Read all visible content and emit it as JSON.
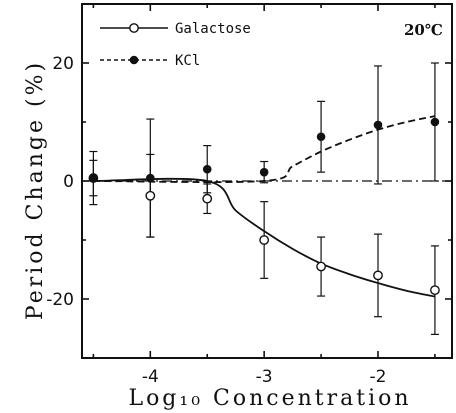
{
  "chart_data": {
    "type": "line",
    "xlabel": "Log₁₀ Concentration",
    "ylabel": "Period Change (%)",
    "annotation": "20℃",
    "xlim": [
      -4.6,
      -1.35
    ],
    "ylim": [
      -30,
      30
    ],
    "x_ticks": [
      -4,
      -3,
      -2
    ],
    "x_tick_labels": [
      "-4",
      "-3",
      "-2"
    ],
    "y_ticks": [
      -20,
      0,
      20
    ],
    "y_tick_labels": [
      "-20",
      "0",
      "20"
    ],
    "legend_position": "top-left",
    "series": [
      {
        "name": "Galactose",
        "marker": "open-circle",
        "line_style": "solid",
        "x": [
          -4.5,
          -4.0,
          -3.5,
          -3.0,
          -2.5,
          -2.0,
          -1.5
        ],
        "y": [
          0.5,
          -2.5,
          -3.0,
          -10.0,
          -14.5,
          -16.0,
          -18.5
        ],
        "err": [
          3.0,
          7.0,
          2.5,
          6.5,
          5.0,
          7.0,
          7.5
        ],
        "fit_x": [
          -4.5,
          -3.5,
          -3.25,
          -3.0,
          -2.75,
          -2.5,
          -2.25,
          -2.0,
          -1.75,
          -1.5
        ],
        "fit_y": [
          0.0,
          0.0,
          -5.0,
          -8.5,
          -11.5,
          -14.0,
          -15.8,
          -17.3,
          -18.6,
          -19.6
        ]
      },
      {
        "name": "KCl",
        "marker": "filled-circle",
        "line_style": "dashed",
        "x": [
          -4.5,
          -4.0,
          -3.5,
          -3.0,
          -2.5,
          -2.0,
          -1.5
        ],
        "y": [
          0.5,
          0.5,
          2.0,
          1.5,
          7.5,
          9.5,
          10.0
        ],
        "err": [
          4.5,
          10.0,
          4.0,
          1.8,
          6.0,
          10.0,
          10.0
        ],
        "fit_x": [
          -4.5,
          -3.0,
          -2.75,
          -2.5,
          -2.25,
          -2.0,
          -1.75,
          -1.5
        ],
        "fit_y": [
          0.0,
          0.0,
          2.5,
          5.0,
          7.0,
          8.7,
          10.0,
          11.0
        ]
      }
    ],
    "reference_line": {
      "y": 0,
      "style": "dash-dot"
    }
  }
}
